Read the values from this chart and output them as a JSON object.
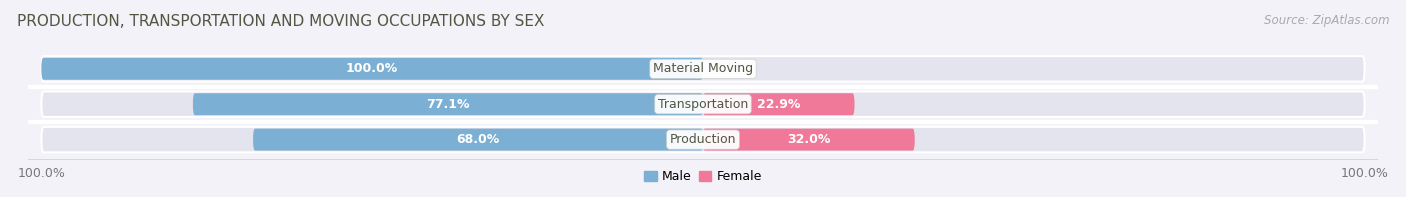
{
  "title": "PRODUCTION, TRANSPORTATION AND MOVING OCCUPATIONS BY SEX",
  "source": "Source: ZipAtlas.com",
  "categories": [
    "Material Moving",
    "Transportation",
    "Production"
  ],
  "male_values": [
    100.0,
    77.1,
    68.0
  ],
  "female_values": [
    0.0,
    22.9,
    32.0
  ],
  "male_color": "#7bafd4",
  "female_color": "#f07898",
  "male_label": "Male",
  "female_label": "Female",
  "bg_color": "#f2f2f8",
  "row_bg_color": "#e4e4ee",
  "bar_bg_color": "#dcdcea",
  "title_fontsize": 11,
  "source_fontsize": 8.5,
  "label_fontsize": 9,
  "tick_fontsize": 9,
  "cat_label_color": "#555544",
  "pct_label_color_inside": "white",
  "pct_label_color_outside": "#888877"
}
